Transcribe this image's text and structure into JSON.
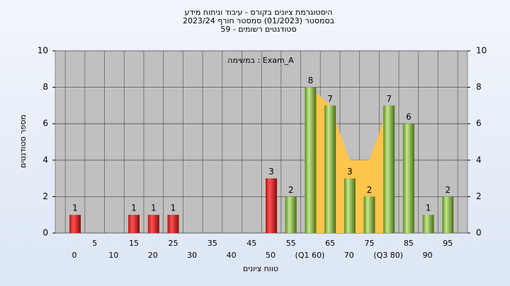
{
  "chart_data": {
    "type": "bar",
    "title": "היסטוגרמת ציונים בקורס - עיבוד וניתוח מידע",
    "subtitle": "בסמסטר  (01/2023)  סמסטר חורף 2023/24",
    "subtitle2": "סטודנטים רשומים - 59",
    "annotation": "במשימה : Exam_A",
    "y_label": "מספר סטודנטים",
    "x_label": "טווח ציונים",
    "categories": [
      "0",
      "5",
      "10",
      "15",
      "20",
      "25",
      "30",
      "35",
      "40",
      "45",
      "50",
      "55",
      "(Q1 60)",
      "65",
      "70",
      "75",
      "(Q3 80)",
      "85",
      "90",
      "95"
    ],
    "values": [
      1,
      null,
      null,
      1,
      1,
      1,
      null,
      null,
      null,
      null,
      3,
      2,
      8,
      7,
      3,
      2,
      7,
      6,
      1,
      2
    ],
    "colors": [
      "red",
      null,
      null,
      "red",
      "red",
      "red",
      null,
      null,
      null,
      null,
      "red",
      "green",
      "green",
      "green",
      "green",
      "green",
      "green",
      "green",
      "green",
      "green"
    ],
    "area": {
      "color": "#ffc44c",
      "values": [
        null,
        null,
        null,
        null,
        null,
        null,
        null,
        null,
        null,
        null,
        null,
        null,
        8,
        7,
        4,
        4,
        7,
        null,
        null,
        null
      ]
    },
    "ylim": [
      0,
      10
    ],
    "yticks": [
      0,
      2,
      4,
      6,
      8,
      10
    ],
    "y2lim": [
      0,
      10
    ],
    "y2ticks": [
      0,
      2,
      4,
      6,
      8,
      10
    ],
    "grid": true
  }
}
